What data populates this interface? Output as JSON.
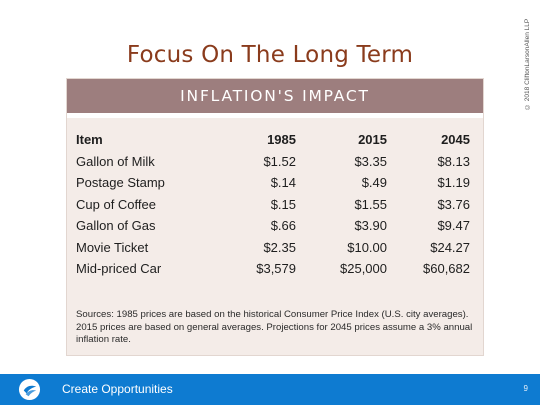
{
  "slide": {
    "title": "Focus On The Long Term",
    "copyright": "© 2018 CliftonLarsonAllen LLP"
  },
  "panel": {
    "header": "INFLATION'S IMPACT",
    "columns": [
      "Item",
      "1985",
      "2015",
      "2045"
    ],
    "rows": [
      [
        "Gallon of Milk",
        "$1.52",
        "$3.35",
        "$8.13"
      ],
      [
        "Postage Stamp",
        "$.14",
        "$.49",
        "$1.19"
      ],
      [
        "Cup of Coffee",
        "$.15",
        "$1.55",
        "$3.76"
      ],
      [
        "Gallon of Gas",
        "$.66",
        "$3.90",
        "$9.47"
      ],
      [
        "Movie Ticket",
        "$2.35",
        "$10.00",
        "$24.27"
      ],
      [
        "Mid-priced Car",
        "$3,579",
        "$25,000",
        "$60,682"
      ]
    ],
    "sources": "Sources: 1985 prices are based on the historical Consumer Price Index (U.S. city averages). 2015 prices are based on general averages. Projections for 2045 prices assume a 3% annual inflation rate."
  },
  "footer": {
    "tagline": "Create Opportunities",
    "page_number": "9",
    "logo_icon": "cla-logo-icon",
    "bar_color": "#0e7bd1"
  },
  "colors": {
    "title": "#8a3b1c",
    "panel_header": "#9d7e7e",
    "panel_background": "#f4ece8"
  }
}
